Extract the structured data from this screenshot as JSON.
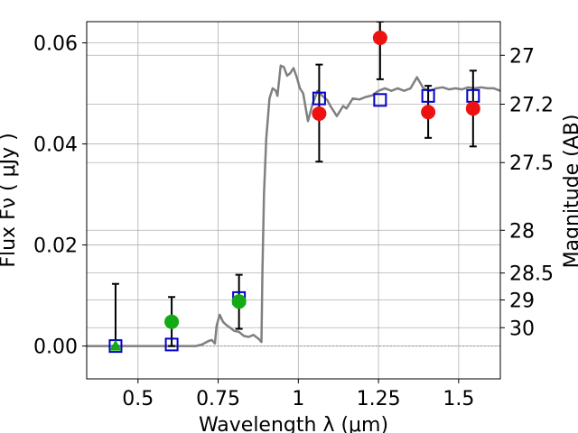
{
  "chart_data": {
    "type": "scatter",
    "xlabel": "Wavelength  λ (μm)",
    "ylabel": "Flux  Fν  ( μJy )",
    "ylabel_right": "Magnitude (AB)",
    "xlim": [
      0.34,
      1.63
    ],
    "ylim": [
      -0.0065,
      0.0642
    ],
    "x_ticks": [
      {
        "value": 0.5,
        "label": "0.5"
      },
      {
        "value": 0.75,
        "label": "0.75"
      },
      {
        "value": 1.0,
        "label": "1"
      },
      {
        "value": 1.25,
        "label": "1.25"
      },
      {
        "value": 1.5,
        "label": "1.5"
      }
    ],
    "y_ticks": [
      {
        "value": 0.0,
        "label": "0.00"
      },
      {
        "value": 0.02,
        "label": "0.02"
      },
      {
        "value": 0.04,
        "label": "0.04"
      },
      {
        "value": 0.06,
        "label": "0.06"
      }
    ],
    "y_ticks_right": [
      {
        "value": 27,
        "label": "27"
      },
      {
        "value": 27.2,
        "label": "27.2"
      },
      {
        "value": 27.5,
        "label": "27.5"
      },
      {
        "value": 28,
        "label": "28"
      },
      {
        "value": 28.5,
        "label": "28.5"
      },
      {
        "value": 29,
        "label": "29"
      },
      {
        "value": 30,
        "label": "30"
      }
    ],
    "grid": true,
    "colors": {
      "template": "#808080",
      "model": "#0000cc",
      "green": "#13aa13",
      "red": "#ee1111",
      "errorbar": "#000000",
      "zero_line": "#999999"
    },
    "series": [
      {
        "marker": "line",
        "points": [
          [
            0.34,
            0
          ],
          [
            0.68,
            0
          ],
          [
            0.7,
            0.0003
          ],
          [
            0.72,
            0.001
          ],
          [
            0.73,
            0.0012
          ],
          [
            0.74,
            0.0005
          ],
          [
            0.745,
            0.004
          ],
          [
            0.755,
            0.0062
          ],
          [
            0.765,
            0.0048
          ],
          [
            0.775,
            0.0042
          ],
          [
            0.79,
            0.0035
          ],
          [
            0.8,
            0.003
          ],
          [
            0.815,
            0.0028
          ],
          [
            0.83,
            0.002
          ],
          [
            0.845,
            0.0018
          ],
          [
            0.86,
            0.0022
          ],
          [
            0.875,
            0.0015
          ],
          [
            0.885,
            0.0008
          ],
          [
            0.888,
            0.015
          ],
          [
            0.893,
            0.03
          ],
          [
            0.9,
            0.041
          ],
          [
            0.91,
            0.049
          ],
          [
            0.92,
            0.051
          ],
          [
            0.93,
            0.0505
          ],
          [
            0.935,
            0.0495
          ],
          [
            0.945,
            0.0555
          ],
          [
            0.955,
            0.0552
          ],
          [
            0.965,
            0.0535
          ],
          [
            0.975,
            0.054
          ],
          [
            0.985,
            0.055
          ],
          [
            0.995,
            0.0532
          ],
          [
            1.005,
            0.051
          ],
          [
            1.015,
            0.05
          ],
          [
            1.03,
            0.0445
          ],
          [
            1.045,
            0.048
          ],
          [
            1.06,
            0.0505
          ],
          [
            1.075,
            0.0495
          ],
          [
            1.09,
            0.0487
          ],
          [
            1.1,
            0.0475
          ],
          [
            1.11,
            0.0465
          ],
          [
            1.12,
            0.0455
          ],
          [
            1.13,
            0.0465
          ],
          [
            1.14,
            0.0475
          ],
          [
            1.15,
            0.047
          ],
          [
            1.17,
            0.049
          ],
          [
            1.19,
            0.0488
          ],
          [
            1.21,
            0.0493
          ],
          [
            1.23,
            0.0496
          ],
          [
            1.25,
            0.0505
          ],
          [
            1.27,
            0.051
          ],
          [
            1.29,
            0.0505
          ],
          [
            1.31,
            0.051
          ],
          [
            1.33,
            0.0505
          ],
          [
            1.35,
            0.051
          ],
          [
            1.37,
            0.0532
          ],
          [
            1.39,
            0.051
          ],
          [
            1.41,
            0.0505
          ],
          [
            1.43,
            0.051
          ],
          [
            1.45,
            0.0512
          ],
          [
            1.47,
            0.0508
          ],
          [
            1.49,
            0.051
          ],
          [
            1.51,
            0.0508
          ],
          [
            1.53,
            0.0512
          ],
          [
            1.55,
            0.051
          ],
          [
            1.57,
            0.0512
          ],
          [
            1.59,
            0.051
          ],
          [
            1.61,
            0.051
          ],
          [
            1.63,
            0.0505
          ]
        ]
      },
      {
        "marker": "open-square",
        "points": [
          [
            0.43,
            0.0
          ],
          [
            0.605,
            0.0003
          ],
          [
            0.815,
            0.0095
          ],
          [
            1.065,
            0.049
          ],
          [
            1.255,
            0.0487
          ],
          [
            1.405,
            0.0495
          ],
          [
            1.545,
            0.0495
          ]
        ]
      },
      {
        "marker": "circle",
        "color_key": "green",
        "points": [
          [
            0.605,
            0.0048
          ],
          [
            0.815,
            0.0088
          ]
        ]
      },
      {
        "marker": "triangle",
        "color_key": "green",
        "points": [
          [
            0.43,
            0.0
          ]
        ]
      },
      {
        "marker": "circle",
        "color_key": "red",
        "points": [
          [
            1.065,
            0.046
          ],
          [
            1.255,
            0.061
          ],
          [
            1.405,
            0.0463
          ],
          [
            1.545,
            0.047
          ]
        ]
      },
      {
        "marker": "errorbar",
        "points": [
          {
            "x": 0.43,
            "y": 0.0,
            "lo": 0.0,
            "hi": 0.0123
          },
          {
            "x": 0.605,
            "y": 0.0048,
            "lo": 0.0,
            "hi": 0.0097
          },
          {
            "x": 0.815,
            "y": 0.0088,
            "lo": 0.0034,
            "hi": 0.0141
          },
          {
            "x": 1.065,
            "y": 0.046,
            "lo": 0.0365,
            "hi": 0.0557
          },
          {
            "x": 1.255,
            "y": 0.061,
            "lo": 0.0528,
            "hi": 0.0642
          },
          {
            "x": 1.405,
            "y": 0.0463,
            "lo": 0.0412,
            "hi": 0.0515
          },
          {
            "x": 1.545,
            "y": 0.047,
            "lo": 0.0395,
            "hi": 0.0545
          }
        ]
      }
    ]
  }
}
